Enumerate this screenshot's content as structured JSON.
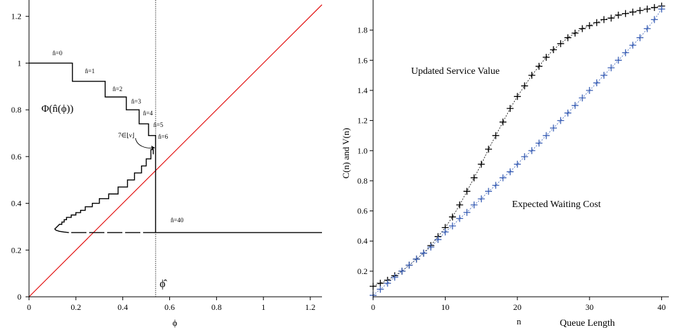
{
  "chart_data": [
    {
      "type": "line",
      "xlabel": "ϕ",
      "ylabel": "",
      "xlim": [
        0,
        1.25
      ],
      "ylim": [
        0,
        1.27
      ],
      "xticks": [
        "0",
        "0.2",
        "0.4",
        "0.6",
        "0.8",
        "1",
        "1.2"
      ],
      "yticks": [
        "0",
        "0.2",
        "0.4",
        "0.6",
        "0.8",
        "1",
        "1.2"
      ],
      "tick_values_x": [
        0,
        0.2,
        0.4,
        0.6,
        0.8,
        1.0,
        1.2
      ],
      "tick_values_y": [
        0,
        0.2,
        0.4,
        0.6,
        0.8,
        1.0,
        1.2
      ],
      "annotations": {
        "curve_label": "Φ(n̂(ϕ))",
        "phi_hat": "ϕ̂",
        "seven_label": "7∈⌊ν⌋",
        "n_labels": [
          "n̂=0",
          "n̂=1",
          "n̂=2",
          "n̂=3",
          "n̂=4",
          "n̂=5",
          "n̂=6",
          "n̂=40"
        ]
      },
      "vertical_line_x": 0.54,
      "series": [
        {
          "color": "#e00000",
          "style": "solid",
          "points": [
            [
              0,
              0
            ],
            [
              1.25,
              1.25
            ]
          ]
        },
        {
          "color": "#000000",
          "style": "step",
          "points": [
            [
              0,
              1.0
            ],
            [
              0.185,
              1.0
            ],
            [
              0.185,
              0.922
            ],
            [
              0.325,
              0.922
            ],
            [
              0.325,
              0.855
            ],
            [
              0.415,
              0.855
            ],
            [
              0.415,
              0.8
            ],
            [
              0.47,
              0.8
            ],
            [
              0.47,
              0.74
            ],
            [
              0.51,
              0.74
            ],
            [
              0.51,
              0.69
            ],
            [
              0.54,
              0.69
            ],
            [
              0.54,
              0.275
            ],
            [
              1.25,
              0.275
            ]
          ]
        },
        {
          "color": "#000000",
          "style": "step",
          "points": [
            [
              0.53,
              0.61
            ],
            [
              0.53,
              0.63
            ],
            [
              0.52,
              0.63
            ],
            [
              0.52,
              0.59
            ],
            [
              0.5,
              0.59
            ],
            [
              0.5,
              0.56
            ],
            [
              0.48,
              0.56
            ],
            [
              0.48,
              0.53
            ],
            [
              0.45,
              0.53
            ],
            [
              0.45,
              0.5
            ],
            [
              0.42,
              0.5
            ],
            [
              0.42,
              0.47
            ],
            [
              0.38,
              0.47
            ],
            [
              0.38,
              0.44
            ],
            [
              0.34,
              0.44
            ],
            [
              0.34,
              0.42
            ],
            [
              0.3,
              0.42
            ],
            [
              0.3,
              0.4
            ],
            [
              0.27,
              0.4
            ],
            [
              0.27,
              0.385
            ],
            [
              0.24,
              0.385
            ],
            [
              0.24,
              0.37
            ],
            [
              0.22,
              0.37
            ],
            [
              0.22,
              0.36
            ],
            [
              0.2,
              0.36
            ],
            [
              0.2,
              0.35
            ],
            [
              0.18,
              0.35
            ],
            [
              0.18,
              0.34
            ],
            [
              0.16,
              0.34
            ],
            [
              0.16,
              0.33
            ],
            [
              0.15,
              0.33
            ],
            [
              0.15,
              0.32
            ],
            [
              0.14,
              0.32
            ],
            [
              0.14,
              0.31
            ],
            [
              0.13,
              0.31
            ],
            [
              0.12,
              0.3
            ],
            [
              0.11,
              0.29
            ],
            [
              0.115,
              0.285
            ],
            [
              0.13,
              0.28
            ],
            [
              0.15,
              0.277
            ],
            [
              0.17,
              0.275
            ]
          ]
        },
        {
          "color": "#000000",
          "style": "dashed",
          "points": [
            [
              0.18,
              0.275
            ],
            [
              0.54,
              0.275
            ]
          ]
        }
      ]
    },
    {
      "type": "scatter",
      "xlabel": "Queue Length",
      "xlabel_var": "n",
      "ylabel": "C(n) and V(n)",
      "xlim": [
        0,
        41
      ],
      "ylim": [
        0.03,
        2.0
      ],
      "xticks": [
        "0",
        "10",
        "20",
        "30",
        "40"
      ],
      "yticks": [
        "0.2",
        "0.4",
        "0.6",
        "0.8",
        "1.0",
        "1.2",
        "1.4",
        "1.6",
        "1.8"
      ],
      "tick_values_x": [
        0,
        10,
        20,
        30,
        40
      ],
      "tick_values_y": [
        0.2,
        0.4,
        0.6,
        0.8,
        1.0,
        1.2,
        1.4,
        1.6,
        1.8
      ],
      "annotations": {
        "updated": "Updated Service Value",
        "expected": "Expected Waiting Cost"
      },
      "series": [
        {
          "color": "#000000",
          "marker": "+",
          "x": [
            0,
            1,
            2,
            3,
            4,
            5,
            6,
            7,
            8,
            9,
            10,
            11,
            12,
            13,
            14,
            15,
            16,
            17,
            18,
            19,
            20,
            21,
            22,
            23,
            24,
            25,
            26,
            27,
            28,
            29,
            30,
            31,
            32,
            33,
            34,
            35,
            36,
            37,
            38,
            39,
            40
          ],
          "values": [
            0.1,
            0.12,
            0.14,
            0.17,
            0.2,
            0.24,
            0.28,
            0.32,
            0.37,
            0.43,
            0.49,
            0.56,
            0.64,
            0.73,
            0.82,
            0.91,
            1.01,
            1.1,
            1.19,
            1.28,
            1.36,
            1.43,
            1.5,
            1.56,
            1.62,
            1.67,
            1.71,
            1.75,
            1.78,
            1.81,
            1.83,
            1.85,
            1.87,
            1.88,
            1.9,
            1.91,
            1.92,
            1.93,
            1.94,
            1.95,
            1.96
          ]
        },
        {
          "color": "#3a5fb5",
          "marker": "+",
          "x": [
            0,
            1,
            2,
            3,
            4,
            5,
            6,
            7,
            8,
            9,
            10,
            11,
            12,
            13,
            14,
            15,
            16,
            17,
            18,
            19,
            20,
            21,
            22,
            23,
            24,
            25,
            26,
            27,
            28,
            29,
            30,
            31,
            32,
            33,
            34,
            35,
            36,
            37,
            38,
            39,
            40
          ],
          "values": [
            0.04,
            0.08,
            0.12,
            0.16,
            0.2,
            0.24,
            0.28,
            0.32,
            0.36,
            0.41,
            0.46,
            0.5,
            0.55,
            0.59,
            0.64,
            0.68,
            0.73,
            0.77,
            0.82,
            0.86,
            0.91,
            0.96,
            1.0,
            1.05,
            1.1,
            1.15,
            1.2,
            1.25,
            1.3,
            1.35,
            1.4,
            1.45,
            1.5,
            1.55,
            1.6,
            1.65,
            1.7,
            1.75,
            1.81,
            1.87,
            1.94
          ]
        }
      ]
    }
  ]
}
